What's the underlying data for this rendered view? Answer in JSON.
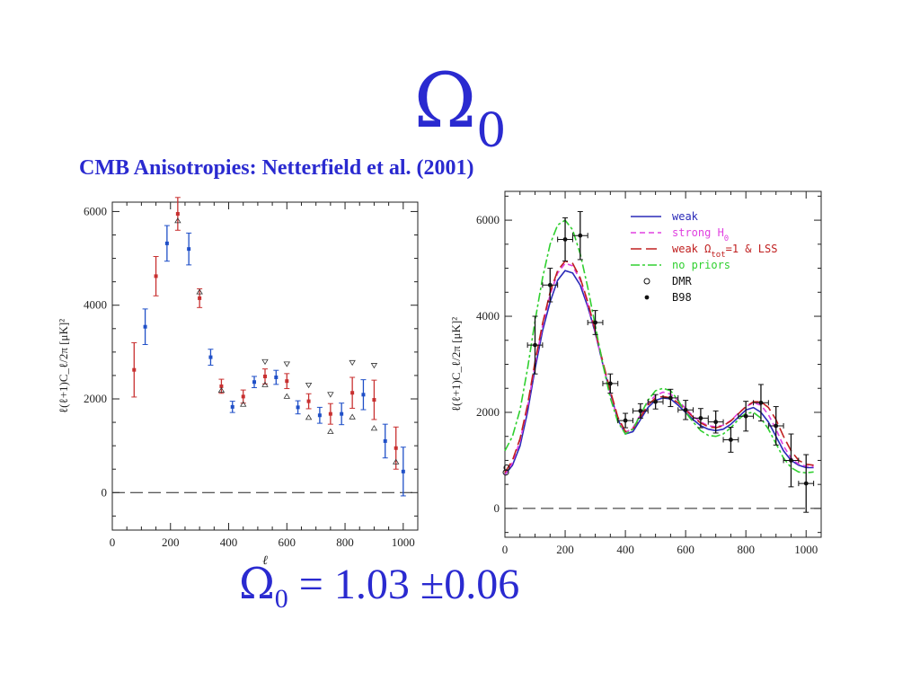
{
  "slide": {
    "title_symbol": "Ω",
    "title_sub": "0",
    "subtitle": "CMB Anisotropies: Netterfield et al. (2001)",
    "result": {
      "symbol": "Ω",
      "sub": "0",
      "equals": "= 1.03",
      "pm": "±",
      "error": "0.06"
    }
  },
  "colors": {
    "text_blue": "#2a2ad0",
    "weak": "#2a2ab8",
    "strong_h0": "#e040e0",
    "weak_lss": "#c02020",
    "no_priors": "#30d030",
    "red_points": "#c83030",
    "blue_points": "#2050c8"
  },
  "chart_data": [
    {
      "type": "scatter",
      "xlabel": "ℓ",
      "ylabel": "ℓ(ℓ+1)C_ℓ/2π  [μK]²",
      "xlim": [
        0,
        1050
      ],
      "ylim": [
        -800,
        6200
      ],
      "xticks": [
        0,
        200,
        400,
        600,
        800,
        1000
      ],
      "yticks": [
        0,
        2000,
        4000,
        6000
      ],
      "reference_line": {
        "y": 0,
        "style": "dashed"
      },
      "series": [
        {
          "color": "red",
          "points": [
            {
              "x": 75,
              "y": 2620,
              "err": 580
            },
            {
              "x": 150,
              "y": 4620,
              "err": 420
            },
            {
              "x": 225,
              "y": 5950,
              "err": 350
            },
            {
              "x": 300,
              "y": 4150,
              "err": 200
            },
            {
              "x": 375,
              "y": 2270,
              "err": 150
            },
            {
              "x": 450,
              "y": 2050,
              "err": 140
            },
            {
              "x": 525,
              "y": 2480,
              "err": 160
            },
            {
              "x": 600,
              "y": 2380,
              "err": 160
            },
            {
              "x": 675,
              "y": 1950,
              "err": 160
            },
            {
              "x": 750,
              "y": 1680,
              "err": 220
            },
            {
              "x": 825,
              "y": 2130,
              "err": 330
            },
            {
              "x": 900,
              "y": 1980,
              "err": 420
            },
            {
              "x": 975,
              "y": 950,
              "err": 450
            }
          ]
        },
        {
          "color": "blue",
          "points": [
            {
              "x": 113,
              "y": 3540,
              "err": 380
            },
            {
              "x": 188,
              "y": 5320,
              "err": 380
            },
            {
              "x": 263,
              "y": 5200,
              "err": 340
            },
            {
              "x": 338,
              "y": 2890,
              "err": 170
            },
            {
              "x": 413,
              "y": 1830,
              "err": 120
            },
            {
              "x": 488,
              "y": 2360,
              "err": 120
            },
            {
              "x": 563,
              "y": 2460,
              "err": 150
            },
            {
              "x": 638,
              "y": 1820,
              "err": 140
            },
            {
              "x": 713,
              "y": 1650,
              "err": 170
            },
            {
              "x": 788,
              "y": 1680,
              "err": 230
            },
            {
              "x": 863,
              "y": 2090,
              "err": 320
            },
            {
              "x": 938,
              "y": 1100,
              "err": 360
            },
            {
              "x": 1000,
              "y": 450,
              "err": 520
            }
          ]
        },
        {
          "color": "black",
          "marker": "triangle-down-open",
          "points": [
            {
              "x": 525,
              "y": 2800
            },
            {
              "x": 600,
              "y": 2750
            },
            {
              "x": 675,
              "y": 2300
            },
            {
              "x": 750,
              "y": 2100
            },
            {
              "x": 825,
              "y": 2780
            },
            {
              "x": 900,
              "y": 2720
            }
          ]
        },
        {
          "color": "black",
          "marker": "triangle-up-open",
          "points": [
            {
              "x": 225,
              "y": 5800
            },
            {
              "x": 300,
              "y": 4280
            },
            {
              "x": 375,
              "y": 2180
            },
            {
              "x": 450,
              "y": 1880
            },
            {
              "x": 525,
              "y": 2300
            },
            {
              "x": 600,
              "y": 2050
            },
            {
              "x": 675,
              "y": 1600
            },
            {
              "x": 750,
              "y": 1300
            },
            {
              "x": 825,
              "y": 1610
            },
            {
              "x": 900,
              "y": 1370
            },
            {
              "x": 975,
              "y": 650
            }
          ]
        }
      ]
    },
    {
      "type": "line",
      "xlabel": "ℓ",
      "ylabel": "ℓ(ℓ+1)C_ℓ/2π  [μK]²",
      "xlim": [
        0,
        1050
      ],
      "ylim": [
        -600,
        6600
      ],
      "xticks": [
        0,
        200,
        400,
        600,
        800,
        1000
      ],
      "yticks": [
        0,
        2000,
        4000,
        6000
      ],
      "reference_line": {
        "y": 0,
        "style": "dashed"
      },
      "legend": {
        "placement": "top-right",
        "entries": [
          {
            "label": "weak",
            "style": "solid",
            "color": "weak"
          },
          {
            "label": "strong H",
            "label_sub": "0",
            "style": "dashed",
            "color": "strong_h0"
          },
          {
            "label": "weak Ω",
            "label_sub": "tot",
            "label_rest": "=1 & LSS",
            "style": "longdash",
            "color": "weak_lss"
          },
          {
            "label": "no priors",
            "style": "dashdot",
            "color": "no_priors"
          },
          {
            "label": "DMR",
            "style": "open-circle",
            "color": "black"
          },
          {
            "label": "B98",
            "style": "filled-circle",
            "color": "black"
          }
        ]
      },
      "x": [
        0,
        25,
        50,
        75,
        100,
        125,
        150,
        175,
        200,
        225,
        250,
        275,
        300,
        325,
        350,
        375,
        400,
        425,
        450,
        475,
        500,
        525,
        550,
        575,
        600,
        625,
        650,
        675,
        700,
        725,
        750,
        775,
        800,
        825,
        850,
        875,
        900,
        925,
        950,
        975,
        1000,
        1025
      ],
      "series": [
        {
          "name": "weak",
          "values": [
            700,
            900,
            1300,
            2000,
            2900,
            3700,
            4300,
            4750,
            4950,
            4900,
            4650,
            4200,
            3650,
            3000,
            2400,
            1850,
            1550,
            1600,
            1850,
            2100,
            2250,
            2300,
            2280,
            2150,
            2000,
            1850,
            1720,
            1650,
            1620,
            1650,
            1750,
            1900,
            2050,
            2100,
            2000,
            1800,
            1500,
            1200,
            1000,
            900,
            850,
            850
          ]
        },
        {
          "name": "strong H0",
          "values": [
            700,
            950,
            1400,
            2100,
            3000,
            3800,
            4450,
            4900,
            5100,
            5050,
            4750,
            4250,
            3650,
            3000,
            2400,
            1850,
            1580,
            1680,
            1950,
            2200,
            2350,
            2420,
            2380,
            2250,
            2080,
            1920,
            1800,
            1720,
            1700,
            1730,
            1830,
            1980,
            2120,
            2200,
            2150,
            1950,
            1650,
            1300,
            1050,
            920,
            880,
            870
          ]
        },
        {
          "name": "weak Ω tot=1 & LSS",
          "values": [
            750,
            1000,
            1450,
            2150,
            3050,
            3850,
            4500,
            4950,
            5150,
            5100,
            4800,
            4300,
            3700,
            3050,
            2450,
            1900,
            1600,
            1650,
            1900,
            2150,
            2300,
            2330,
            2300,
            2200,
            2050,
            1900,
            1780,
            1700,
            1680,
            1720,
            1820,
            1970,
            2120,
            2220,
            2220,
            2100,
            1850,
            1500,
            1200,
            1000,
            920,
            900
          ]
        },
        {
          "name": "no priors",
          "values": [
            1200,
            1500,
            2050,
            2900,
            3900,
            4800,
            5500,
            5900,
            6000,
            5800,
            5300,
            4600,
            3800,
            3000,
            2300,
            1800,
            1550,
            1650,
            1950,
            2250,
            2450,
            2500,
            2450,
            2250,
            2000,
            1800,
            1620,
            1520,
            1500,
            1550,
            1680,
            1850,
            1980,
            2000,
            1880,
            1650,
            1350,
            1050,
            850,
            760,
            740,
            760
          ]
        }
      ],
      "points": {
        "DMR": [
          {
            "x": 3,
            "y": 750
          },
          {
            "x": 6,
            "y": 850
          }
        ],
        "B98": [
          {
            "x": 100,
            "y": 3400,
            "xerr": 25,
            "err": 600
          },
          {
            "x": 150,
            "y": 4650,
            "xerr": 25,
            "err": 350
          },
          {
            "x": 200,
            "y": 5600,
            "xerr": 25,
            "err": 450
          },
          {
            "x": 250,
            "y": 5680,
            "xerr": 25,
            "err": 500
          },
          {
            "x": 300,
            "y": 3870,
            "xerr": 25,
            "err": 250
          },
          {
            "x": 350,
            "y": 2600,
            "xerr": 25,
            "err": 200
          },
          {
            "x": 400,
            "y": 1830,
            "xerr": 25,
            "err": 150
          },
          {
            "x": 450,
            "y": 2030,
            "xerr": 25,
            "err": 150
          },
          {
            "x": 500,
            "y": 2220,
            "xerr": 25,
            "err": 150
          },
          {
            "x": 550,
            "y": 2300,
            "xerr": 25,
            "err": 180
          },
          {
            "x": 600,
            "y": 2050,
            "xerr": 25,
            "err": 200
          },
          {
            "x": 650,
            "y": 1880,
            "xerr": 25,
            "err": 200
          },
          {
            "x": 700,
            "y": 1800,
            "xerr": 25,
            "err": 230
          },
          {
            "x": 750,
            "y": 1430,
            "xerr": 25,
            "err": 260
          },
          {
            "x": 800,
            "y": 1920,
            "xerr": 25,
            "err": 310
          },
          {
            "x": 850,
            "y": 2200,
            "xerr": 25,
            "err": 380
          },
          {
            "x": 900,
            "y": 1720,
            "xerr": 25,
            "err": 400
          },
          {
            "x": 950,
            "y": 1000,
            "xerr": 25,
            "err": 550
          },
          {
            "x": 1000,
            "y": 520,
            "xerr": 25,
            "err": 600
          }
        ]
      }
    }
  ]
}
